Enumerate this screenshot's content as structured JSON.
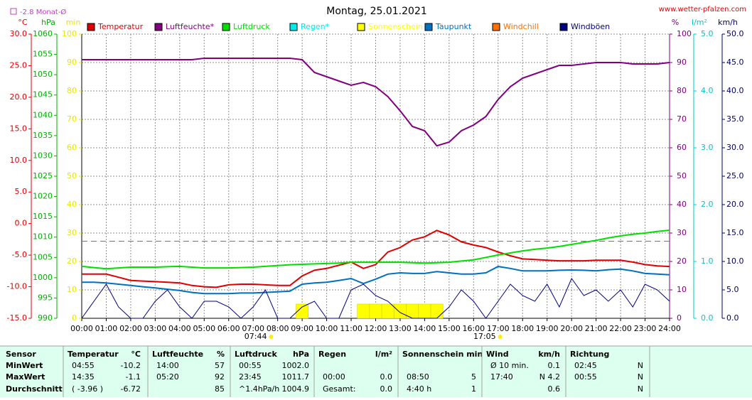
{
  "chart_data": {
    "type": "line",
    "title": "Montag, 25.01.2021",
    "source": "www.wetter-pfalzen.com",
    "grid": true,
    "monthly_mean": {
      "value": -2.8,
      "label": "-2.8 Monat-Ø",
      "color": "#c040c0",
      "axis": "temp"
    },
    "sunrise": {
      "value": 7.733,
      "label": "07:44"
    },
    "sunset": {
      "value": 17.083,
      "label": "17:05"
    },
    "xlim": [
      0,
      24
    ],
    "xticks": [
      {
        "value": 0,
        "label": "00:00"
      },
      {
        "value": 1,
        "label": "01:00"
      },
      {
        "value": 2,
        "label": "02:00"
      },
      {
        "value": 3,
        "label": "03:00"
      },
      {
        "value": 4,
        "label": "04:00"
      },
      {
        "value": 5,
        "label": "05:00"
      },
      {
        "value": 6,
        "label": "06:00"
      },
      {
        "value": 7,
        "label": "07:00"
      },
      {
        "value": 8,
        "label": "08:00"
      },
      {
        "value": 9,
        "label": "09:00"
      },
      {
        "value": 10,
        "label": "10:00"
      },
      {
        "value": 11,
        "label": "11:00"
      },
      {
        "value": 12,
        "label": "12:00"
      },
      {
        "value": 13,
        "label": "13:00"
      },
      {
        "value": 14,
        "label": "14:00"
      },
      {
        "value": 15,
        "label": "15:00"
      },
      {
        "value": 16,
        "label": "16:00"
      },
      {
        "value": 17,
        "label": "17:00"
      },
      {
        "value": 18,
        "label": "18:00"
      },
      {
        "value": 19,
        "label": "19:00"
      },
      {
        "value": 20,
        "label": "20:00"
      },
      {
        "value": 21,
        "label": "21:00"
      },
      {
        "value": 22,
        "label": "22:00"
      },
      {
        "value": 23,
        "label": "23:00"
      },
      {
        "value": 24,
        "label": "24:00"
      }
    ],
    "axes": {
      "temp": {
        "label": "°C",
        "color": "#e00000",
        "side": "left",
        "lim": [
          -15,
          30
        ],
        "ticks": [
          {
            "value": -15,
            "label": "-15.0"
          },
          {
            "value": -10,
            "label": "-10.0"
          },
          {
            "value": -5,
            "label": "-5.0"
          },
          {
            "value": 0,
            "label": "0.0"
          },
          {
            "value": 5,
            "label": "5.0"
          },
          {
            "value": 10,
            "label": "10.0"
          },
          {
            "value": 15,
            "label": "15.0"
          },
          {
            "value": 20,
            "label": "20.0"
          },
          {
            "value": 25,
            "label": "25.0"
          },
          {
            "value": 30,
            "label": "30.0"
          }
        ]
      },
      "pressure": {
        "label": "hPa",
        "color": "#00b000",
        "side": "left",
        "lim": [
          990,
          1060
        ],
        "ticks": [
          990,
          995,
          1000,
          1005,
          1010,
          1015,
          1020,
          1025,
          1030,
          1035,
          1040,
          1045,
          1050,
          1055,
          1060
        ]
      },
      "minutes": {
        "label": "min",
        "color": "#e8e800",
        "side": "left",
        "lim": [
          0,
          100
        ],
        "ticks": [
          0,
          10,
          20,
          30,
          40,
          50,
          60,
          70,
          80,
          90,
          100
        ]
      },
      "humidity": {
        "label": "%",
        "color": "#800080",
        "side": "right",
        "lim": [
          0,
          100
        ],
        "ticks": [
          0,
          10,
          20,
          30,
          40,
          50,
          60,
          70,
          80,
          90,
          100
        ]
      },
      "rain": {
        "label": "l/m²",
        "color": "#00c8c8",
        "side": "right",
        "lim": [
          0,
          5
        ],
        "ticks": [
          {
            "value": 0,
            "label": "0.0"
          },
          {
            "value": 1,
            "label": "1.0"
          },
          {
            "value": 2,
            "label": "2.0"
          },
          {
            "value": 3,
            "label": "3.0"
          },
          {
            "value": 4,
            "label": "4.0"
          },
          {
            "value": 5,
            "label": "5.0"
          }
        ]
      },
      "wind": {
        "label": "km/h",
        "color": "#000060",
        "side": "right",
        "lim": [
          0,
          50
        ],
        "ticks": [
          {
            "value": 0,
            "label": "0.0"
          },
          {
            "value": 5,
            "label": "5.0"
          },
          {
            "value": 10,
            "label": "10.0"
          },
          {
            "value": 15,
            "label": "15.0"
          },
          {
            "value": 20,
            "label": "20.0"
          },
          {
            "value": 25,
            "label": "25.0"
          },
          {
            "value": 30,
            "label": "30.0"
          },
          {
            "value": 35,
            "label": "35.0"
          },
          {
            "value": 40,
            "label": "40.0"
          },
          {
            "value": 45,
            "label": "45.0"
          },
          {
            "value": 50,
            "label": "50.0"
          }
        ]
      }
    },
    "x": [
      0,
      0.5,
      1,
      1.5,
      2,
      2.5,
      3,
      3.5,
      4,
      4.5,
      5,
      5.5,
      6,
      6.5,
      7,
      7.5,
      8,
      8.5,
      9,
      9.5,
      10,
      10.5,
      11,
      11.5,
      12,
      12.5,
      13,
      13.5,
      14,
      14.5,
      15,
      15.5,
      16,
      16.5,
      17,
      17.5,
      18,
      18.5,
      19,
      19.5,
      20,
      20.5,
      21,
      21.5,
      22,
      22.5,
      23,
      23.5,
      24
    ],
    "series": [
      {
        "name": "Temperatur",
        "color": "#e00000",
        "axis": "temp",
        "values": [
          -8.0,
          -8.0,
          -8.0,
          -8.5,
          -9.0,
          -9.1,
          -9.2,
          -9.3,
          -9.4,
          -9.8,
          -10.0,
          -10.1,
          -9.7,
          -9.6,
          -9.6,
          -9.7,
          -9.8,
          -9.8,
          -8.3,
          -7.4,
          -7.1,
          -6.6,
          -6.1,
          -7.1,
          -6.5,
          -4.5,
          -3.8,
          -2.6,
          -2.1,
          -1.1,
          -1.8,
          -2.9,
          -3.4,
          -3.8,
          -4.5,
          -5.1,
          -5.6,
          -5.7,
          -5.8,
          -5.9,
          -5.9,
          -5.9,
          -5.8,
          -5.8,
          -5.8,
          -6.1,
          -6.5,
          -6.7,
          -6.8
        ]
      },
      {
        "name": "Luftfeuchte*",
        "color": "#800080",
        "axis": "humidity",
        "values": [
          91,
          91,
          91,
          91,
          91,
          91,
          91,
          91,
          91,
          91,
          91.5,
          91.5,
          91.5,
          91.5,
          91.5,
          91.5,
          91.5,
          91.5,
          91,
          86.5,
          85,
          83.5,
          82,
          83,
          81.5,
          78,
          73,
          67.5,
          66,
          60.7,
          62,
          66,
          68,
          71,
          77,
          81.5,
          84.5,
          86,
          87.5,
          89,
          89,
          89.5,
          90,
          90,
          90,
          89.5,
          89.5,
          89.5,
          90
        ]
      },
      {
        "name": "Luftdruck",
        "color": "#00e000",
        "axis": "pressure",
        "values": [
          1002.8,
          1002.5,
          1002.2,
          1002.4,
          1002.6,
          1002.6,
          1002.6,
          1002.7,
          1002.8,
          1002.6,
          1002.4,
          1002.4,
          1002.4,
          1002.5,
          1002.6,
          1002.8,
          1003.0,
          1003.2,
          1003.3,
          1003.4,
          1003.5,
          1003.6,
          1003.8,
          1003.8,
          1003.8,
          1003.8,
          1003.8,
          1003.7,
          1003.6,
          1003.7,
          1003.8,
          1004.1,
          1004.4,
          1005.0,
          1005.6,
          1006.1,
          1006.6,
          1007.0,
          1007.3,
          1007.7,
          1008.2,
          1008.7,
          1009.2,
          1009.8,
          1010.3,
          1010.7,
          1011.0,
          1011.4,
          1011.7
        ]
      },
      {
        "name": "Regen*",
        "color": "#00e8e8",
        "axis": "rain"
      },
      {
        "name": "Sonnenschein",
        "color": "#ffff00",
        "axis": "minutes",
        "style": "bar",
        "values": [
          null,
          null,
          null,
          null,
          null,
          null,
          null,
          null,
          null,
          null,
          null,
          null,
          null,
          null,
          null,
          null,
          null,
          null,
          5,
          null,
          null,
          null,
          null,
          5,
          5,
          5,
          5,
          5,
          5,
          5,
          null,
          null,
          null,
          null,
          null,
          null,
          null,
          null,
          null,
          null,
          null,
          null,
          null,
          null,
          null,
          null,
          null,
          null,
          null
        ]
      },
      {
        "name": "Taupunkt",
        "color": "#0070c0",
        "axis": "temp",
        "values": [
          -9.3,
          -9.3,
          -9.4,
          -9.6,
          -9.8,
          -10.0,
          -10.2,
          -10.4,
          -10.6,
          -10.9,
          -11.1,
          -11.1,
          -11.1,
          -11.0,
          -11.0,
          -10.9,
          -10.8,
          -10.7,
          -9.6,
          -9.4,
          -9.3,
          -9.0,
          -8.7,
          -9.5,
          -8.8,
          -8.0,
          -7.8,
          -7.9,
          -7.9,
          -7.6,
          -7.8,
          -8.0,
          -8.0,
          -7.8,
          -6.8,
          -7.1,
          -7.5,
          -7.5,
          -7.5,
          -7.4,
          -7.35,
          -7.4,
          -7.5,
          -7.3,
          -7.2,
          -7.5,
          -7.9,
          -8.0,
          -8.1
        ]
      },
      {
        "name": "Windchill",
        "color": "#ff7000",
        "axis": "temp"
      },
      {
        "name": "Windböen",
        "color": "#000080",
        "axis": "wind",
        "values": [
          0,
          3,
          6,
          2,
          0,
          0,
          3,
          5,
          2,
          0,
          3,
          3,
          2,
          0,
          2,
          5,
          0,
          0,
          2,
          3,
          0,
          0,
          5,
          6,
          4,
          3,
          1,
          0,
          0,
          0,
          2,
          5,
          3,
          0,
          3,
          6,
          4,
          3,
          6,
          2,
          7,
          4,
          5,
          3,
          5,
          2,
          6,
          5,
          3
        ]
      }
    ]
  },
  "table": {
    "row_labels": [
      "Sensor",
      "MinWert",
      "MaxWert",
      "Durchschnitt"
    ],
    "sections": [
      {
        "title": "Temperatur",
        "unit": "°C",
        "rows": [
          [
            "04:55",
            "-10.2"
          ],
          [
            "14:35",
            "-1.1"
          ],
          [
            "( -3.96 )",
            "-6.72"
          ]
        ]
      },
      {
        "title": "Luftfeuchte",
        "unit": "%",
        "rows": [
          [
            "14:00",
            "57"
          ],
          [
            "05:20",
            "92"
          ],
          [
            null,
            "85"
          ]
        ]
      },
      {
        "title": "Luftdruck",
        "unit": "hPa",
        "rows": [
          [
            "00:55",
            "1002.0"
          ],
          [
            "23:45",
            "1011.7"
          ],
          [
            "^1.4hPa/h",
            "1004.9"
          ]
        ]
      },
      {
        "title": "Regen",
        "unit": "l/m²",
        "rows": [
          [
            null,
            null
          ],
          [
            "00:00",
            "0.0"
          ],
          [
            "Gesamt:",
            "0.0"
          ]
        ]
      },
      {
        "title": "Sonnenschein min",
        "unit": null,
        "rows": [
          [
            null,
            null
          ],
          [
            "08:50",
            "5"
          ],
          [
            "4:40 h",
            "1"
          ]
        ]
      },
      {
        "title": "Wind",
        "unit": "km/h",
        "rows": [
          [
            "Ø 10 min.",
            "0.1"
          ],
          [
            "17:40",
            "N 4.2"
          ],
          [
            null,
            "0.6"
          ]
        ]
      },
      {
        "title": "Richtung",
        "unit": null,
        "rows": [
          [
            "02:45",
            "N"
          ],
          [
            "00:55",
            "N"
          ],
          [
            null,
            "N"
          ]
        ]
      }
    ]
  }
}
